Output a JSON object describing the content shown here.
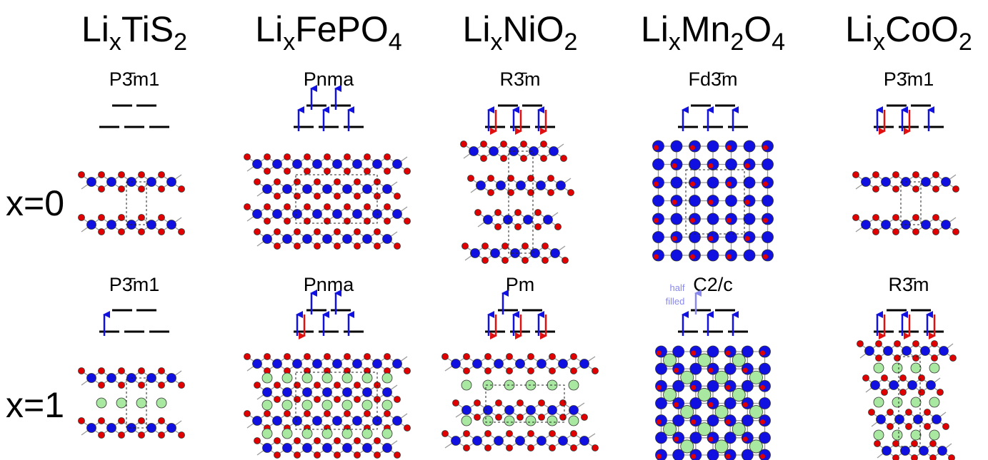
{
  "columns": [
    {
      "formula": [
        "Li",
        "x",
        "TiS",
        "2"
      ],
      "x0": {
        "space_group": "P3̄m1"
      },
      "x1": {
        "space_group": "P3̄m1"
      }
    },
    {
      "formula": [
        "Li",
        "x",
        "FePO",
        "4"
      ],
      "x0": {
        "space_group": "Pnma"
      },
      "x1": {
        "space_group": "Pnma"
      }
    },
    {
      "formula": [
        "Li",
        "x",
        "NiO",
        "2"
      ],
      "x0": {
        "space_group": "R3̄m"
      },
      "x1": {
        "space_group": "Pm"
      }
    },
    {
      "formula": [
        "Li",
        "x",
        "Mn",
        "2",
        "O",
        "4"
      ],
      "x0": {
        "space_group": "Fd3̄m"
      },
      "x1": {
        "space_group": "C2/c"
      }
    },
    {
      "formula": [
        "Li",
        "x",
        "CoO",
        "2"
      ],
      "x0": {
        "space_group": "P3̄m1"
      },
      "x1": {
        "space_group": "R3̄m"
      }
    }
  ],
  "rows": [
    "x=0",
    "x=1"
  ],
  "annotation": [
    "half",
    "filled"
  ]
}
